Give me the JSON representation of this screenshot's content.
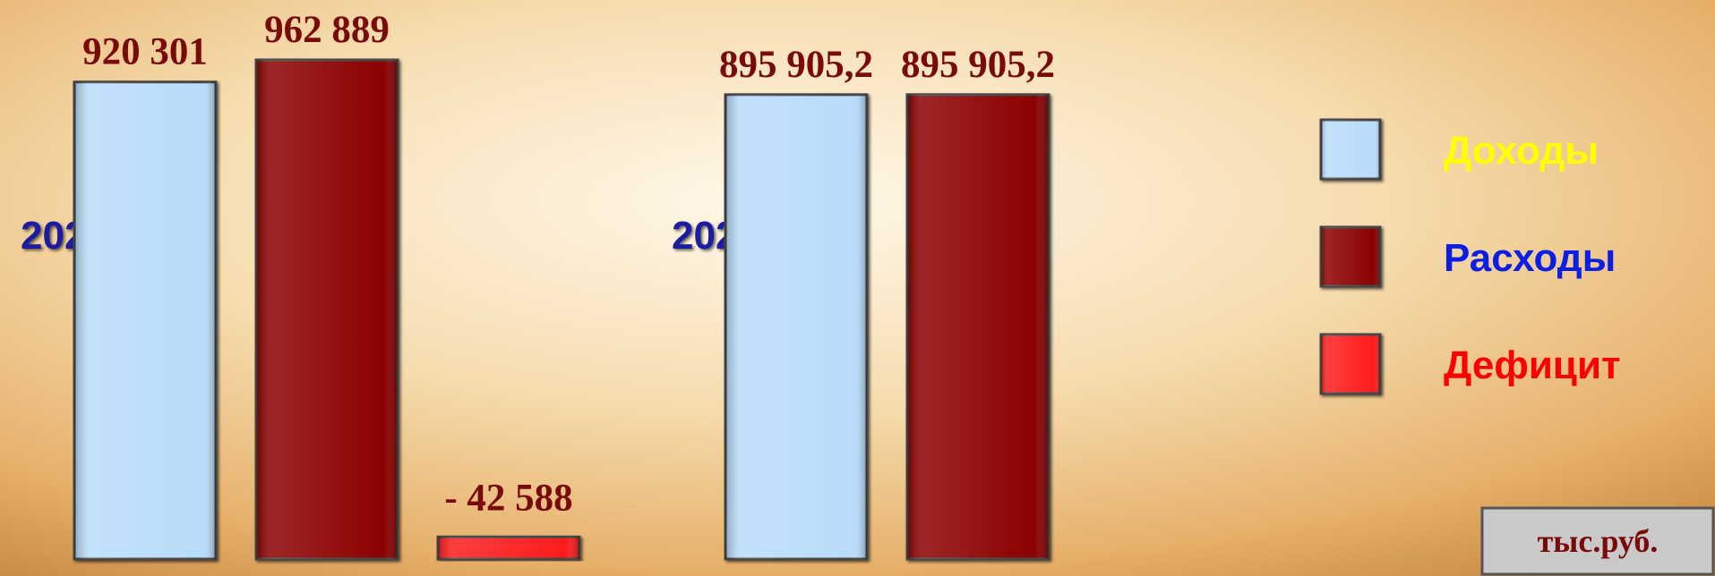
{
  "chart_data": {
    "type": "bar",
    "categories": [
      "2020 год",
      "2021 год"
    ],
    "series": [
      {
        "name": "Доходы",
        "color": "#b9dcfa",
        "values": [
          920301,
          895905.2
        ],
        "value_labels": [
          "920 301",
          "895 905,2"
        ]
      },
      {
        "name": "Расходы",
        "color": "#8b0000",
        "values": [
          962889,
          895905.2
        ],
        "value_labels": [
          "962 889",
          "895 905,2"
        ]
      },
      {
        "name": "Дефицит",
        "color": "#ff1a1a",
        "values": [
          -42588,
          null
        ],
        "value_labels": [
          "- 42 588",
          null
        ]
      }
    ],
    "legend_colors": [
      "#ffff00",
      "#0a1ee6",
      "#ff0000"
    ],
    "unit": "тыс.руб."
  }
}
